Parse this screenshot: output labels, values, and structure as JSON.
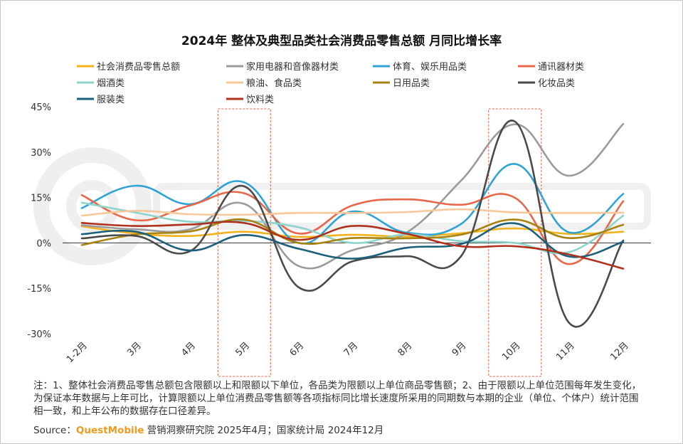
{
  "chart_data": {
    "type": "line",
    "title": "2024年 整体及典型品类社会消费品零售总额 月同比增长率",
    "categories": [
      "1-2月",
      "3月",
      "4月",
      "5月",
      "6月",
      "7月",
      "8月",
      "9月",
      "10月",
      "11月",
      "12月"
    ],
    "ylim": [
      -30,
      45
    ],
    "yticks": [
      -30,
      -15,
      0,
      15,
      30,
      45
    ],
    "yunit": "%",
    "highlight_categories": [
      "5月",
      "10月"
    ],
    "series": [
      {
        "name": "社会消费品零售总额",
        "color": "#f2b21b",
        "values": [
          5.5,
          3.1,
          2.3,
          3.7,
          2.0,
          2.7,
          2.1,
          3.2,
          4.8,
          3.0,
          3.7
        ]
      },
      {
        "name": "家用电器和音像器材类",
        "color": "#9b9b9b",
        "values": [
          5.8,
          4.5,
          4.5,
          12.9,
          -7.6,
          -2.4,
          3.4,
          20.5,
          39.2,
          22.2,
          39.3
        ]
      },
      {
        "name": "体育、娱乐用品类",
        "color": "#2fa3d4",
        "values": [
          11.5,
          18.9,
          12.8,
          20.0,
          0.0,
          10.4,
          3.4,
          6.2,
          26.1,
          3.5,
          16.2
        ]
      },
      {
        "name": "通讯器材类",
        "color": "#e8674a",
        "values": [
          15.8,
          7.5,
          12.4,
          16.4,
          3.1,
          12.4,
          14.4,
          12.6,
          14.9,
          -7.0,
          13.8
        ]
      },
      {
        "name": "烟酒类",
        "color": "#8fd3cd",
        "values": [
          13.3,
          10.0,
          7.0,
          7.3,
          5.2,
          0.0,
          2.8,
          0.6,
          0.0,
          -3.0,
          9.0
        ]
      },
      {
        "name": "粮油、食品类",
        "color": "#f8c79a",
        "values": [
          9.0,
          10.6,
          9.5,
          9.3,
          9.9,
          9.9,
          10.2,
          11.1,
          10.1,
          9.9,
          10.0
        ]
      },
      {
        "name": "日用品类",
        "color": "#a88310",
        "values": [
          -0.7,
          2.8,
          3.8,
          7.7,
          0.0,
          1.6,
          1.5,
          2.7,
          7.7,
          1.6,
          6.0
        ]
      },
      {
        "name": "化妆品类",
        "color": "#4a4a4a",
        "values": [
          1.5,
          2.3,
          -2.7,
          18.7,
          -14.6,
          -6.1,
          -4.4,
          -4.5,
          40.1,
          -26.4,
          0.8
        ]
      },
      {
        "name": "服装类",
        "color": "#1c5f7c",
        "values": [
          2.9,
          3.7,
          -2.5,
          2.6,
          -1.9,
          -5.2,
          -1.6,
          -0.4,
          6.5,
          -4.5,
          0.4
        ]
      },
      {
        "name": "饮料类",
        "color": "#b0311b",
        "values": [
          6.6,
          5.6,
          6.1,
          6.6,
          1.0,
          5.6,
          3.0,
          -1.1,
          -1.1,
          -3.8,
          -8.5
        ]
      }
    ]
  },
  "note": "注：1、整体社会消费品零售总额包含限额以上和限额以下单位，各品类为限额以上单位商品零售额；2、由于限额以上单位范围每年发生变化，为保证本年数据与上年可比，计算限额以上单位消费品零售额等各项指标同比增长速度所采用的同期数与本期的企业（单位、个体户）统计范围相一致，和上年公布的数据存在口径差异。",
  "source": {
    "label": "Source：",
    "brand": "QuestMobile",
    "text": " 营销洞察研究院 2025年4月；国家统计局 2024年12月"
  }
}
